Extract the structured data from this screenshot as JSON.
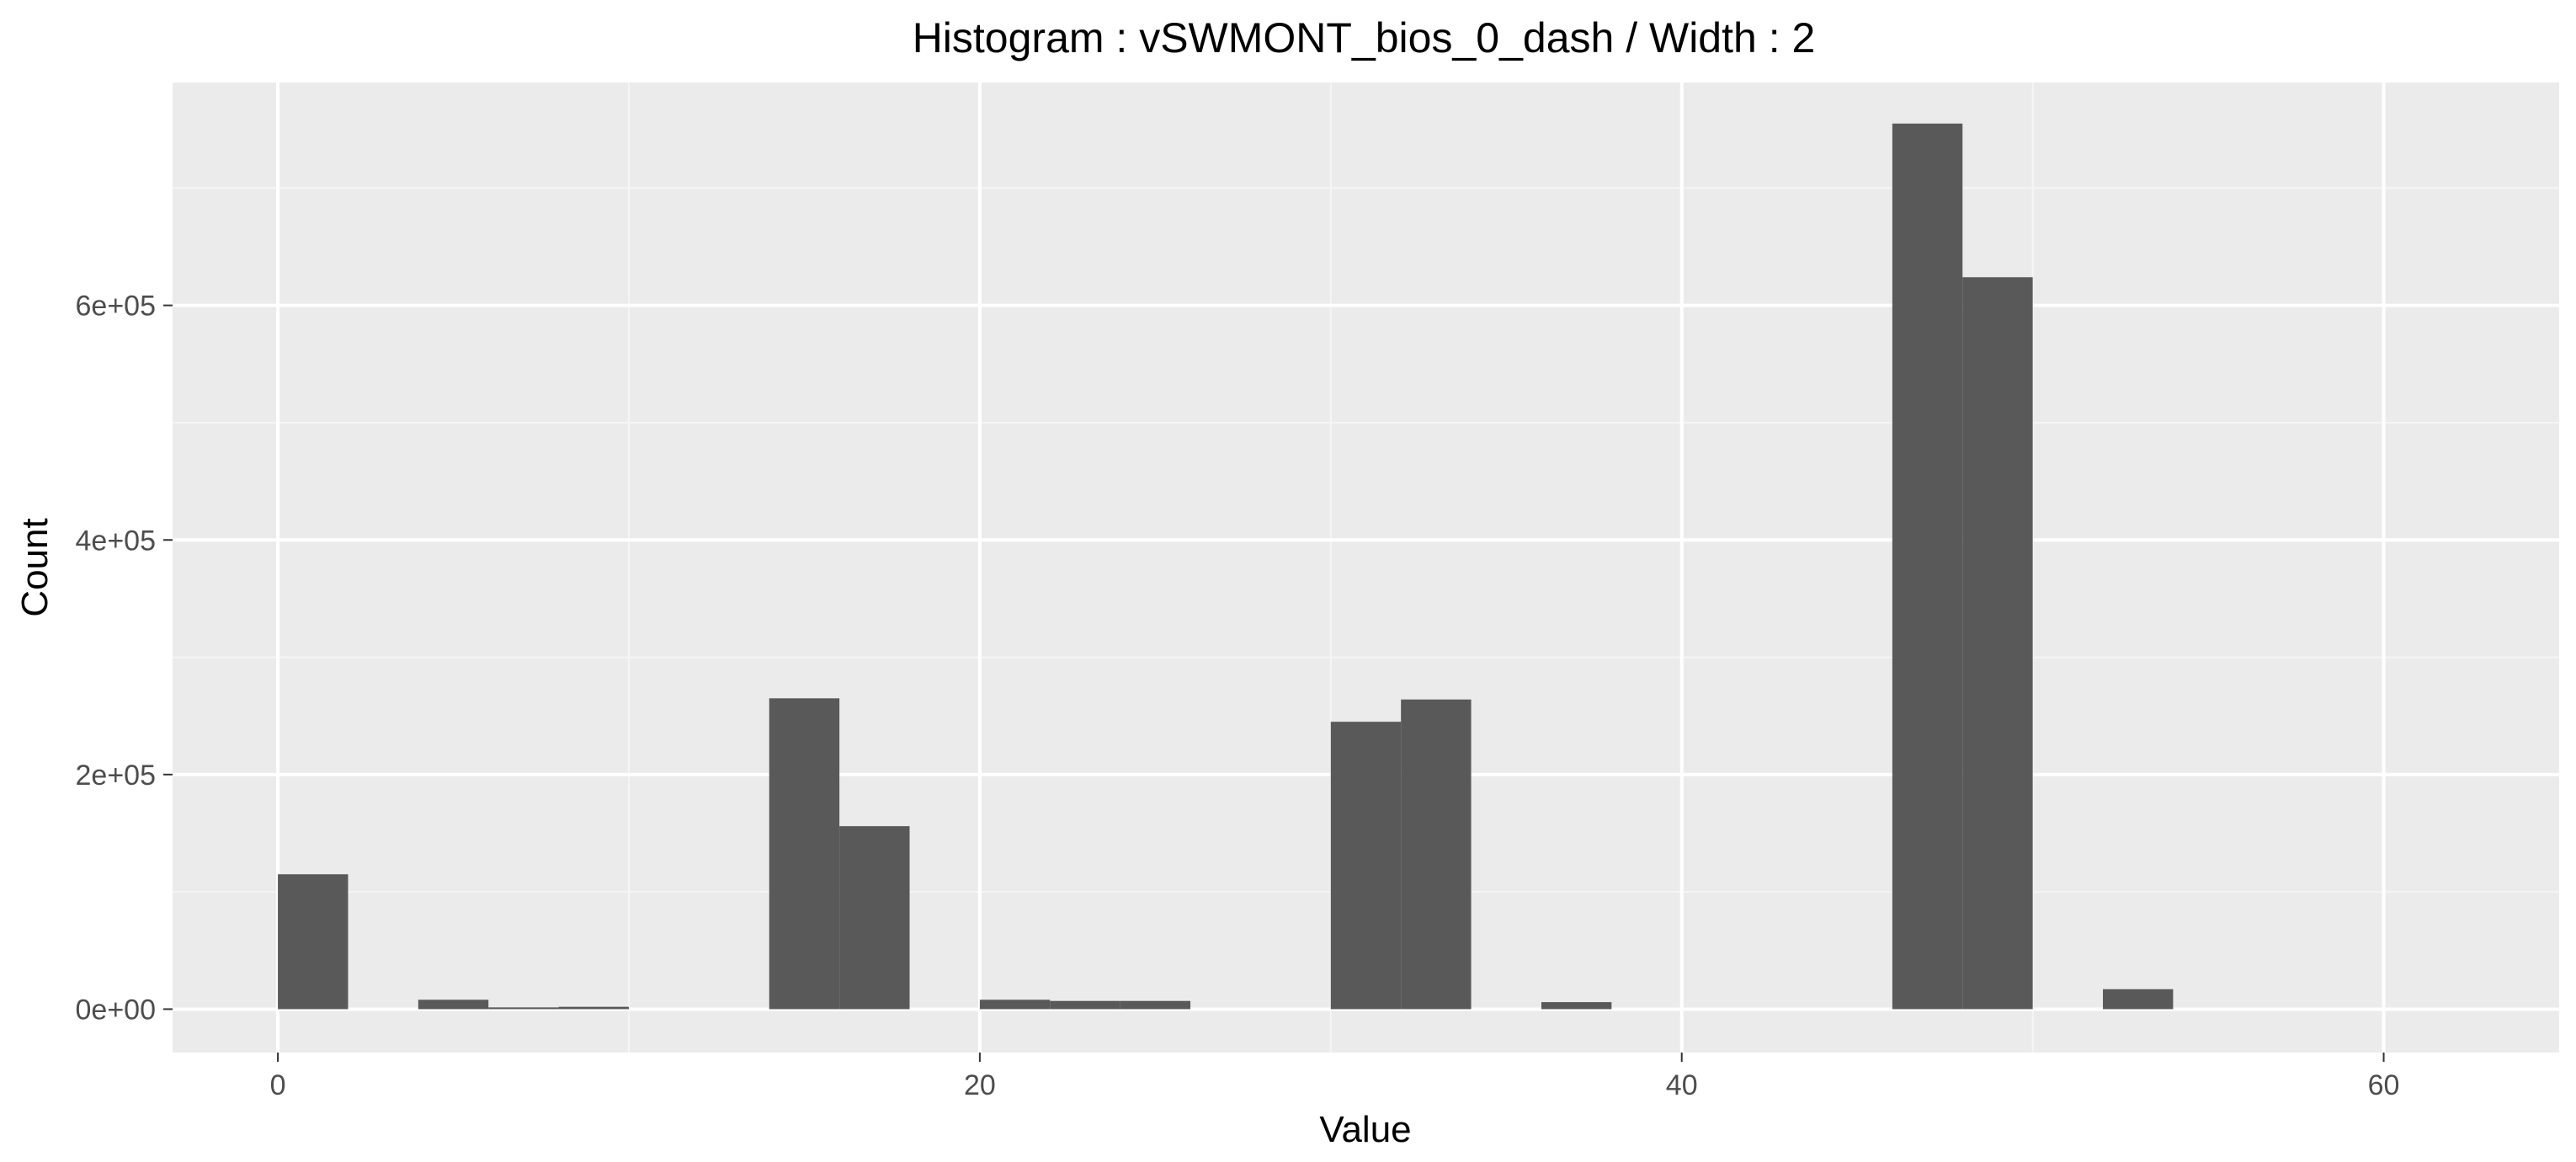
{
  "chart_data": {
    "type": "bar",
    "title": "Histogram : vSWMONT_bios_0_dash / Width : 2",
    "xlabel": "Value",
    "ylabel": "Count",
    "bin_width": 2,
    "xlim": [
      -3,
      65
    ],
    "ylim": [
      -37000,
      790000
    ],
    "x_ticks": [
      0,
      20,
      40,
      60
    ],
    "x_tick_labels": [
      "0",
      "20",
      "40",
      "60"
    ],
    "y_ticks": [
      0,
      200000,
      400000,
      600000
    ],
    "y_tick_labels": [
      "0e+00",
      "2e+05",
      "4e+05",
      "6e+05"
    ],
    "grid": true,
    "bins": [
      {
        "x0": 0,
        "x1": 2,
        "count": 115000
      },
      {
        "x0": 4,
        "x1": 6,
        "count": 8000
      },
      {
        "x0": 6,
        "x1": 8,
        "count": 1500
      },
      {
        "x0": 8,
        "x1": 10,
        "count": 2000
      },
      {
        "x0": 14,
        "x1": 16,
        "count": 265000
      },
      {
        "x0": 16,
        "x1": 18,
        "count": 156000
      },
      {
        "x0": 20,
        "x1": 22,
        "count": 8000
      },
      {
        "x0": 22,
        "x1": 24,
        "count": 7000
      },
      {
        "x0": 24,
        "x1": 26,
        "count": 7000
      },
      {
        "x0": 30,
        "x1": 32,
        "count": 245000
      },
      {
        "x0": 32,
        "x1": 34,
        "count": 264000
      },
      {
        "x0": 36,
        "x1": 38,
        "count": 6000
      },
      {
        "x0": 46,
        "x1": 48,
        "count": 755000
      },
      {
        "x0": 48,
        "x1": 50,
        "count": 624000
      },
      {
        "x0": 52,
        "x1": 54,
        "count": 17000
      }
    ],
    "colors": {
      "bar": "#595959",
      "panel": "#ebebeb",
      "grid_major": "#ffffff",
      "grid_minor": "#f5f5f5",
      "tick": "#333333"
    }
  }
}
